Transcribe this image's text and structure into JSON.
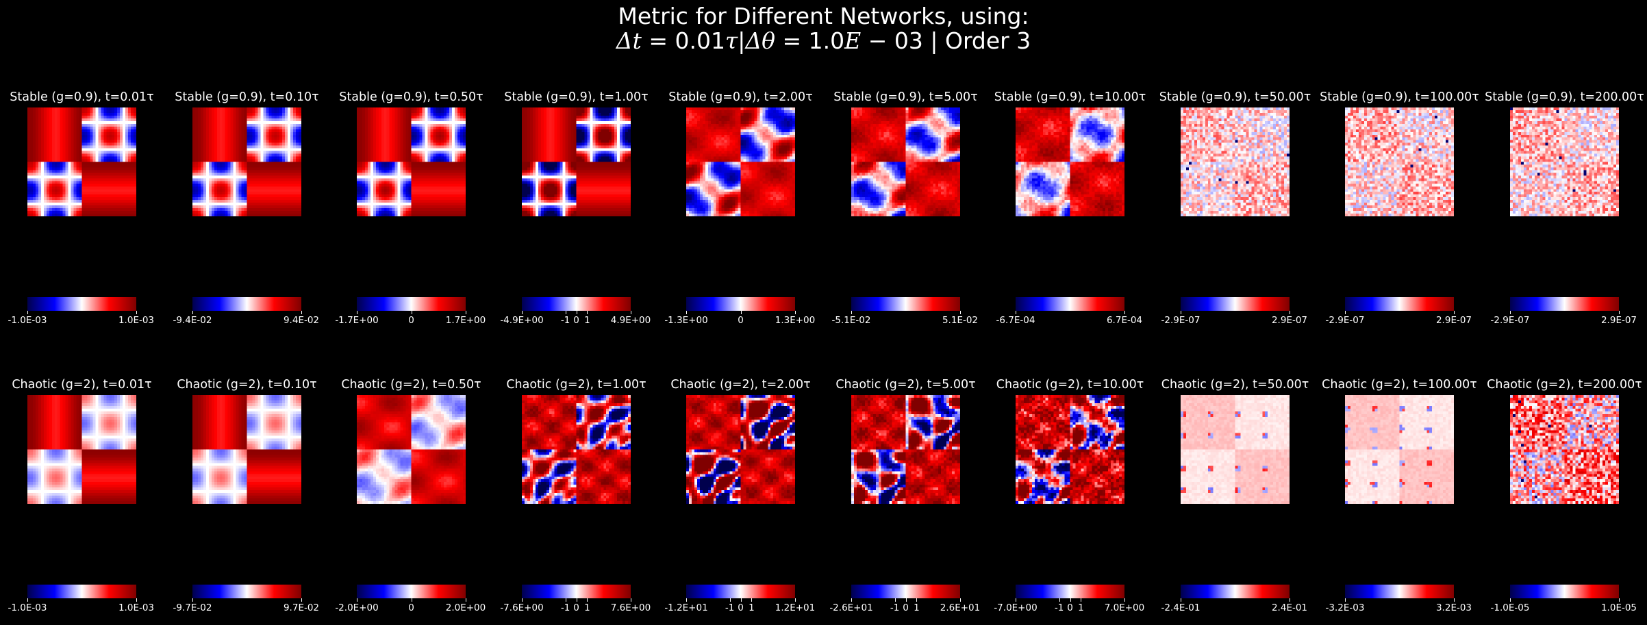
{
  "figure": {
    "title_line1": "Metric for Different Networks, using:",
    "title_line2_parts": {
      "dt_label": "Δt",
      "dt_value": " = 0.01",
      "tau": "τ",
      "sep": "|",
      "dtheta_label": "Δθ",
      "dtheta_value": " = 1.0",
      "E": "E",
      "exp": " − 03",
      "order": " | Order 3"
    }
  },
  "colors": {
    "background": "#000000",
    "colormap": "seismic",
    "cmap_low": "#00004d",
    "cmap_blue": "#0000ff",
    "cmap_white": "#ffffff",
    "cmap_red": "#ff0000",
    "cmap_high": "#800000"
  },
  "chart_data": [
    {
      "type": "heatmap",
      "row": "stable",
      "panels": [
        {
          "title": "Stable (g=0.9), t=0.01τ",
          "pattern": "smooth",
          "intensity": 0.75,
          "noise": 0.0,
          "ticks": [
            "-1.0E-03",
            "1.0E-03"
          ]
        },
        {
          "title": "Stable (g=0.9), t=0.10τ",
          "pattern": "smooth",
          "intensity": 0.75,
          "noise": 0.0,
          "ticks": [
            "-9.4E-02",
            "9.4E-02"
          ]
        },
        {
          "title": "Stable (g=0.9), t=0.50τ",
          "pattern": "smooth",
          "intensity": 0.85,
          "noise": 0.0,
          "ticks": [
            "-1.7E+00",
            "0",
            "1.7E+00"
          ]
        },
        {
          "title": "Stable (g=0.9), t=1.00τ",
          "pattern": "smooth",
          "intensity": 1.3,
          "noise": 0.0,
          "ticks": [
            "-4.9E+00",
            "-1",
            "0",
            "1",
            "4.9E+00"
          ]
        },
        {
          "title": "Stable (g=0.9), t=2.00τ",
          "pattern": "blobs",
          "intensity": 0.9,
          "noise": 0.1,
          "ticks": [
            "-1.3E+00",
            "0",
            "1.3E+00"
          ]
        },
        {
          "title": "Stable (g=0.9), t=5.00τ",
          "pattern": "blobs",
          "intensity": 0.8,
          "noise": 0.15,
          "ticks": [
            "-5.1E-02",
            "5.1E-02"
          ]
        },
        {
          "title": "Stable (g=0.9), t=10.00τ",
          "pattern": "blobs",
          "intensity": 0.6,
          "noise": 0.2,
          "ticks": [
            "-6.7E-04",
            "6.7E-04"
          ]
        },
        {
          "title": "Stable (g=0.9), t=50.00τ",
          "pattern": "noise",
          "intensity": 0.25,
          "noise": 0.3,
          "ticks": [
            "-2.9E-07",
            "2.9E-07"
          ]
        },
        {
          "title": "Stable (g=0.9), t=100.00τ",
          "pattern": "noise",
          "intensity": 0.3,
          "noise": 0.3,
          "ticks": [
            "-2.9E-07",
            "2.9E-07"
          ]
        },
        {
          "title": "Stable (g=0.9), t=200.00τ",
          "pattern": "noise",
          "intensity": 0.3,
          "noise": 0.3,
          "ticks": [
            "-2.9E-07",
            "2.9E-07"
          ]
        }
      ]
    },
    {
      "type": "heatmap",
      "row": "chaotic",
      "panels": [
        {
          "title": "Chaotic (g=2), t=0.01τ",
          "pattern": "smooth",
          "intensity": 0.3,
          "noise": 0.0,
          "ticks": [
            "-1.0E-03",
            "1.0E-03"
          ]
        },
        {
          "title": "Chaotic (g=2), t=0.10τ",
          "pattern": "smooth",
          "intensity": 0.3,
          "noise": 0.0,
          "ticks": [
            "-9.7E-02",
            "9.7E-02"
          ]
        },
        {
          "title": "Chaotic (g=2), t=0.50τ",
          "pattern": "blobs",
          "intensity": 0.35,
          "noise": 0.05,
          "ticks": [
            "-2.0E+00",
            "0",
            "2.0E+00"
          ]
        },
        {
          "title": "Chaotic (g=2), t=1.00τ",
          "pattern": "chaos",
          "intensity": 1.0,
          "noise": 0.1,
          "ticks": [
            "-7.6E+00",
            "-1",
            "0",
            "1",
            "7.6E+00"
          ]
        },
        {
          "title": "Chaotic (g=2), t=2.00τ",
          "pattern": "chaos",
          "intensity": 1.6,
          "noise": 0.1,
          "ticks": [
            "-1.2E+01",
            "-1",
            "0",
            "1",
            "1.2E+01"
          ]
        },
        {
          "title": "Chaotic (g=2), t=5.00τ",
          "pattern": "chaos",
          "intensity": 1.6,
          "noise": 0.15,
          "ticks": [
            "-2.6E+01",
            "-1",
            "0",
            "1",
            "2.6E+01"
          ]
        },
        {
          "title": "Chaotic (g=2), t=10.00τ",
          "pattern": "chaos",
          "intensity": 1.2,
          "noise": 0.3,
          "ticks": [
            "-7.0E+00",
            "-1",
            "0",
            "1",
            "7.0E+00"
          ]
        },
        {
          "title": "Chaotic (g=2), t=50.00τ",
          "pattern": "sparse",
          "intensity": 0.3,
          "noise": 0.05,
          "ticks": [
            "-2.4E-01",
            "2.4E-01"
          ]
        },
        {
          "title": "Chaotic (g=2), t=100.00τ",
          "pattern": "sparse",
          "intensity": 0.3,
          "noise": 0.05,
          "ticks": [
            "-3.2E-03",
            "3.2E-03"
          ]
        },
        {
          "title": "Chaotic (g=2), t=200.00τ",
          "pattern": "noise",
          "intensity": 0.55,
          "noise": 0.5,
          "ticks": [
            "-1.0E-05",
            "1.0E-05"
          ]
        }
      ]
    }
  ]
}
